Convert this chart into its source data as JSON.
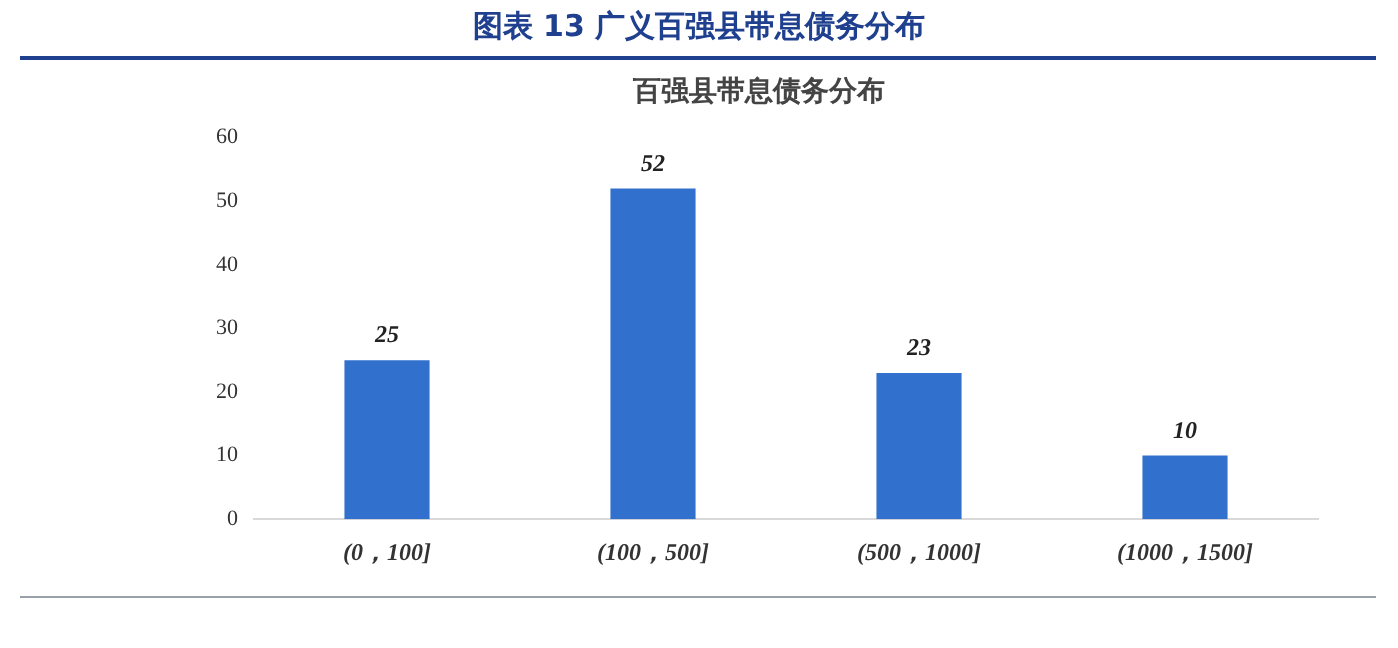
{
  "chart_data": {
    "type": "bar",
    "title": "图表 13 广义百强县带息债务分布",
    "subtitle": "百强县带息债务分布",
    "categories": [
      "(0，100]",
      "(100，500]",
      "(500，1000]",
      "(1000，1500]"
    ],
    "values": [
      25,
      52,
      23,
      10
    ],
    "color": "#3170cc",
    "ylim": [
      0,
      60
    ],
    "yticks": [
      0,
      10,
      20,
      30,
      40,
      50,
      60
    ],
    "grid": false,
    "data_labels": true
  }
}
